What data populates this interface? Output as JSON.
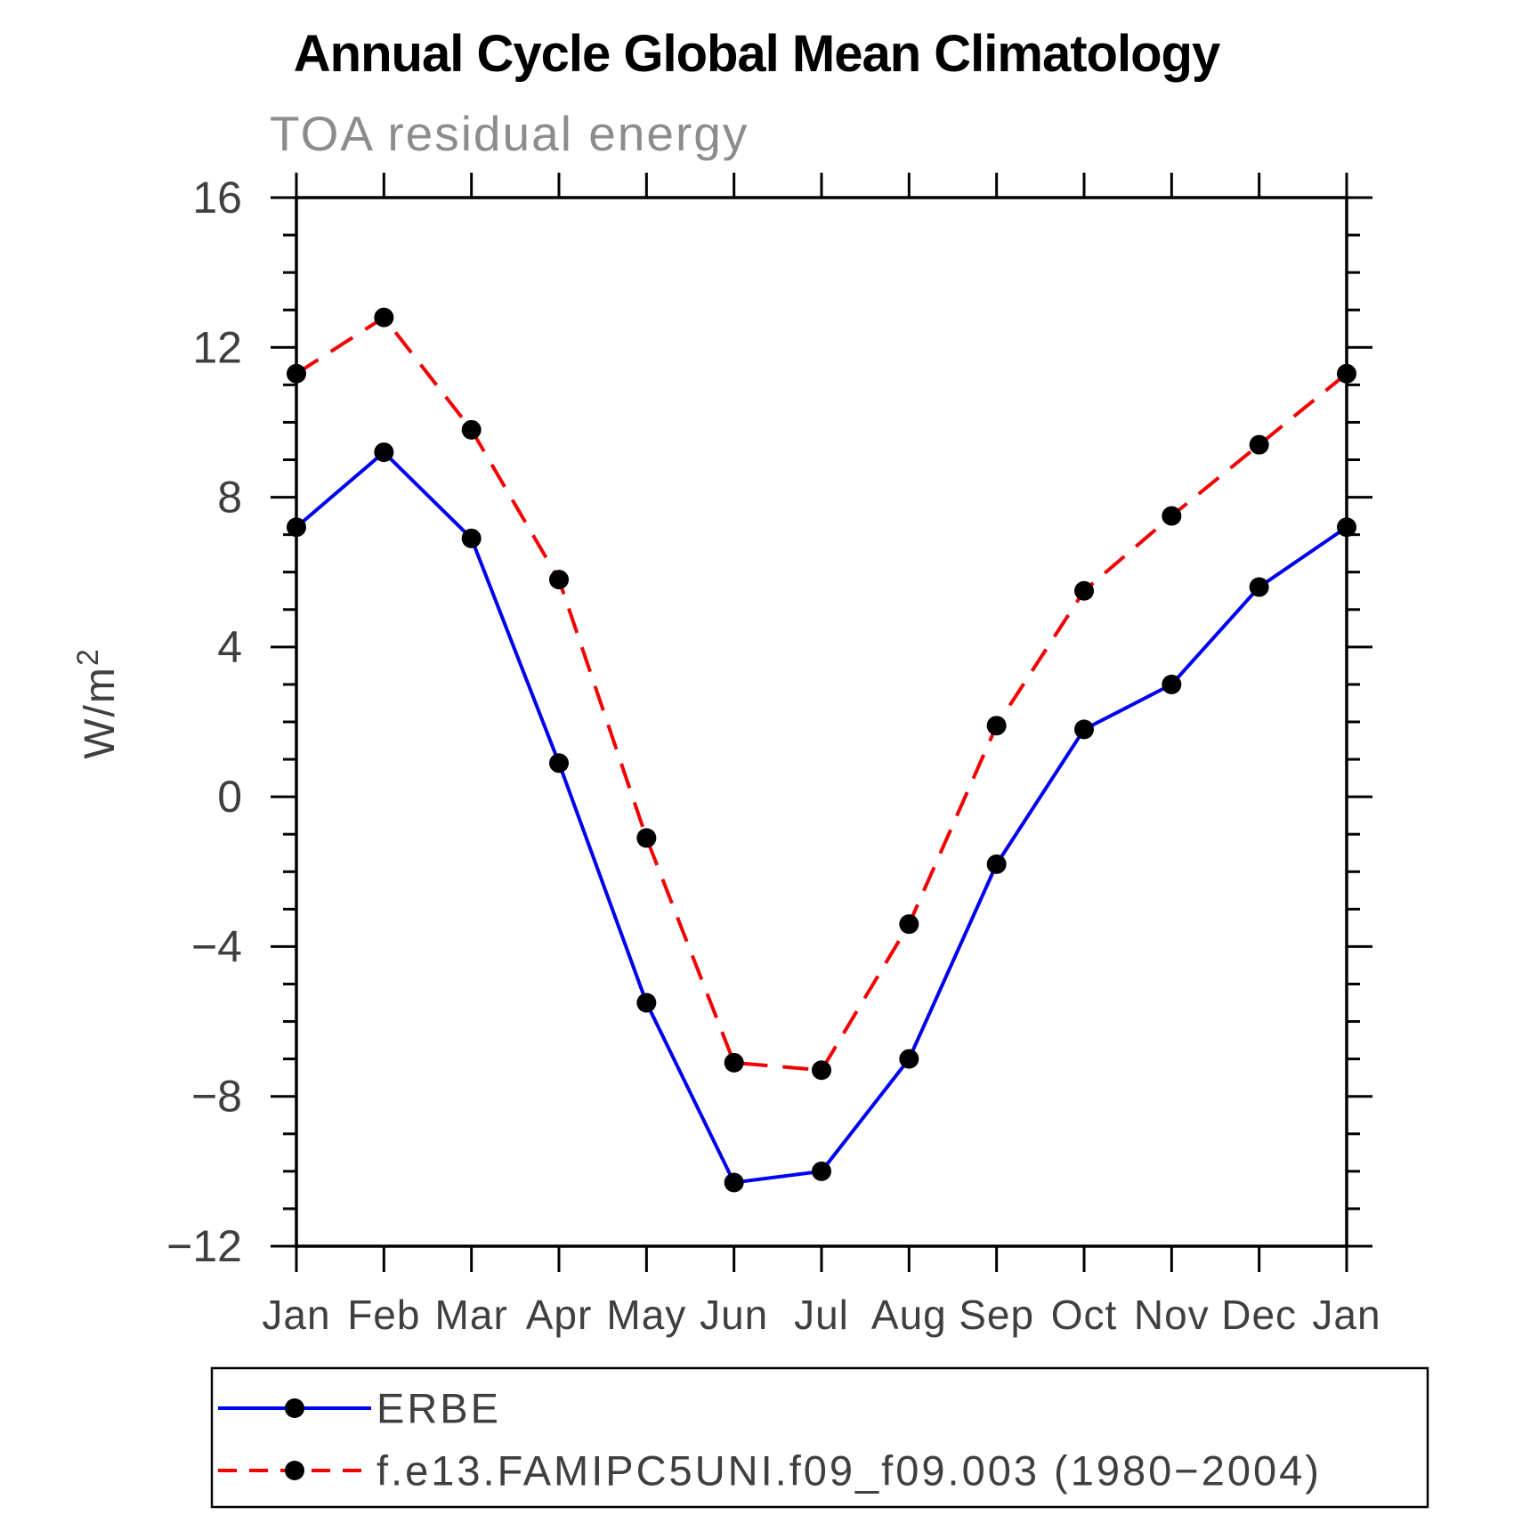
{
  "chart_data": {
    "type": "line",
    "title": "Annual Cycle Global Mean Climatology",
    "subtitle": "TOA residual energy",
    "ylabel_base": "W/m",
    "ylabel_exponent": "2",
    "categories": [
      "Jan",
      "Feb",
      "Mar",
      "Apr",
      "May",
      "Jun",
      "Jul",
      "Aug",
      "Sep",
      "Oct",
      "Nov",
      "Dec",
      "Jan"
    ],
    "series": [
      {
        "name": "ERBE",
        "color": "#0000f0",
        "style": "solid",
        "marker": "filled-circle",
        "values": [
          7.2,
          9.2,
          6.9,
          0.9,
          -5.5,
          -10.3,
          -10.0,
          -7.0,
          -1.8,
          1.8,
          3.0,
          5.6,
          7.2
        ]
      },
      {
        "name": "f.e13.FAMIPC5UNI.f09_f09.003 (1980−2004)",
        "color": "#f40000",
        "style": "dashed",
        "marker": "filled-circle",
        "values": [
          11.3,
          12.8,
          9.8,
          5.8,
          -1.1,
          -7.1,
          -7.3,
          -3.4,
          1.9,
          5.5,
          7.5,
          9.4,
          11.3
        ]
      }
    ],
    "ylim": [
      -12,
      16
    ],
    "ytick_major": 4,
    "ytick_minor": 1,
    "ytick_values": [
      -12,
      -8,
      -4,
      0,
      4,
      8,
      12,
      16
    ],
    "ytick_labels": [
      "−12",
      "−8",
      "−4",
      "0",
      "4",
      "8",
      "12",
      "16"
    ],
    "xlabel": "",
    "grid": false,
    "axis_color": "#000000",
    "marker_color": "#000000",
    "legend_position": "bottom-left"
  }
}
